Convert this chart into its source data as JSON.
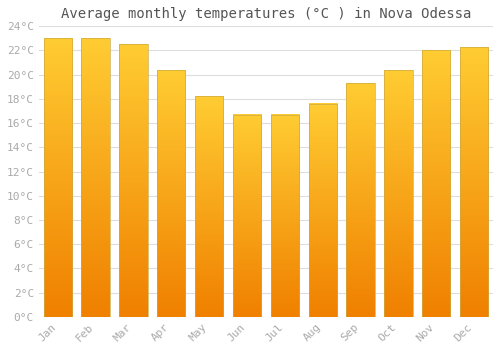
{
  "title": "Average monthly temperatures (°C ) in Nova Odessa",
  "months": [
    "Jan",
    "Feb",
    "Mar",
    "Apr",
    "May",
    "Jun",
    "Jul",
    "Aug",
    "Sep",
    "Oct",
    "Nov",
    "Dec"
  ],
  "values": [
    23.0,
    23.0,
    22.5,
    20.4,
    18.2,
    16.7,
    16.7,
    17.6,
    19.3,
    20.4,
    22.0,
    22.3
  ],
  "bar_color_top": "#FFCC33",
  "bar_color_bottom": "#F08000",
  "ylim": [
    0,
    24
  ],
  "yticks": [
    0,
    2,
    4,
    6,
    8,
    10,
    12,
    14,
    16,
    18,
    20,
    22,
    24
  ],
  "ytick_labels": [
    "0°C",
    "2°C",
    "4°C",
    "6°C",
    "8°C",
    "10°C",
    "12°C",
    "14°C",
    "16°C",
    "18°C",
    "20°C",
    "22°C",
    "24°C"
  ],
  "grid_color": "#dddddd",
  "bg_color": "#ffffff",
  "title_fontsize": 10,
  "tick_fontsize": 8,
  "font_color": "#aaaaaa",
  "title_color": "#555555",
  "bar_width": 0.75,
  "bar_edge_color": "#ccaa44"
}
